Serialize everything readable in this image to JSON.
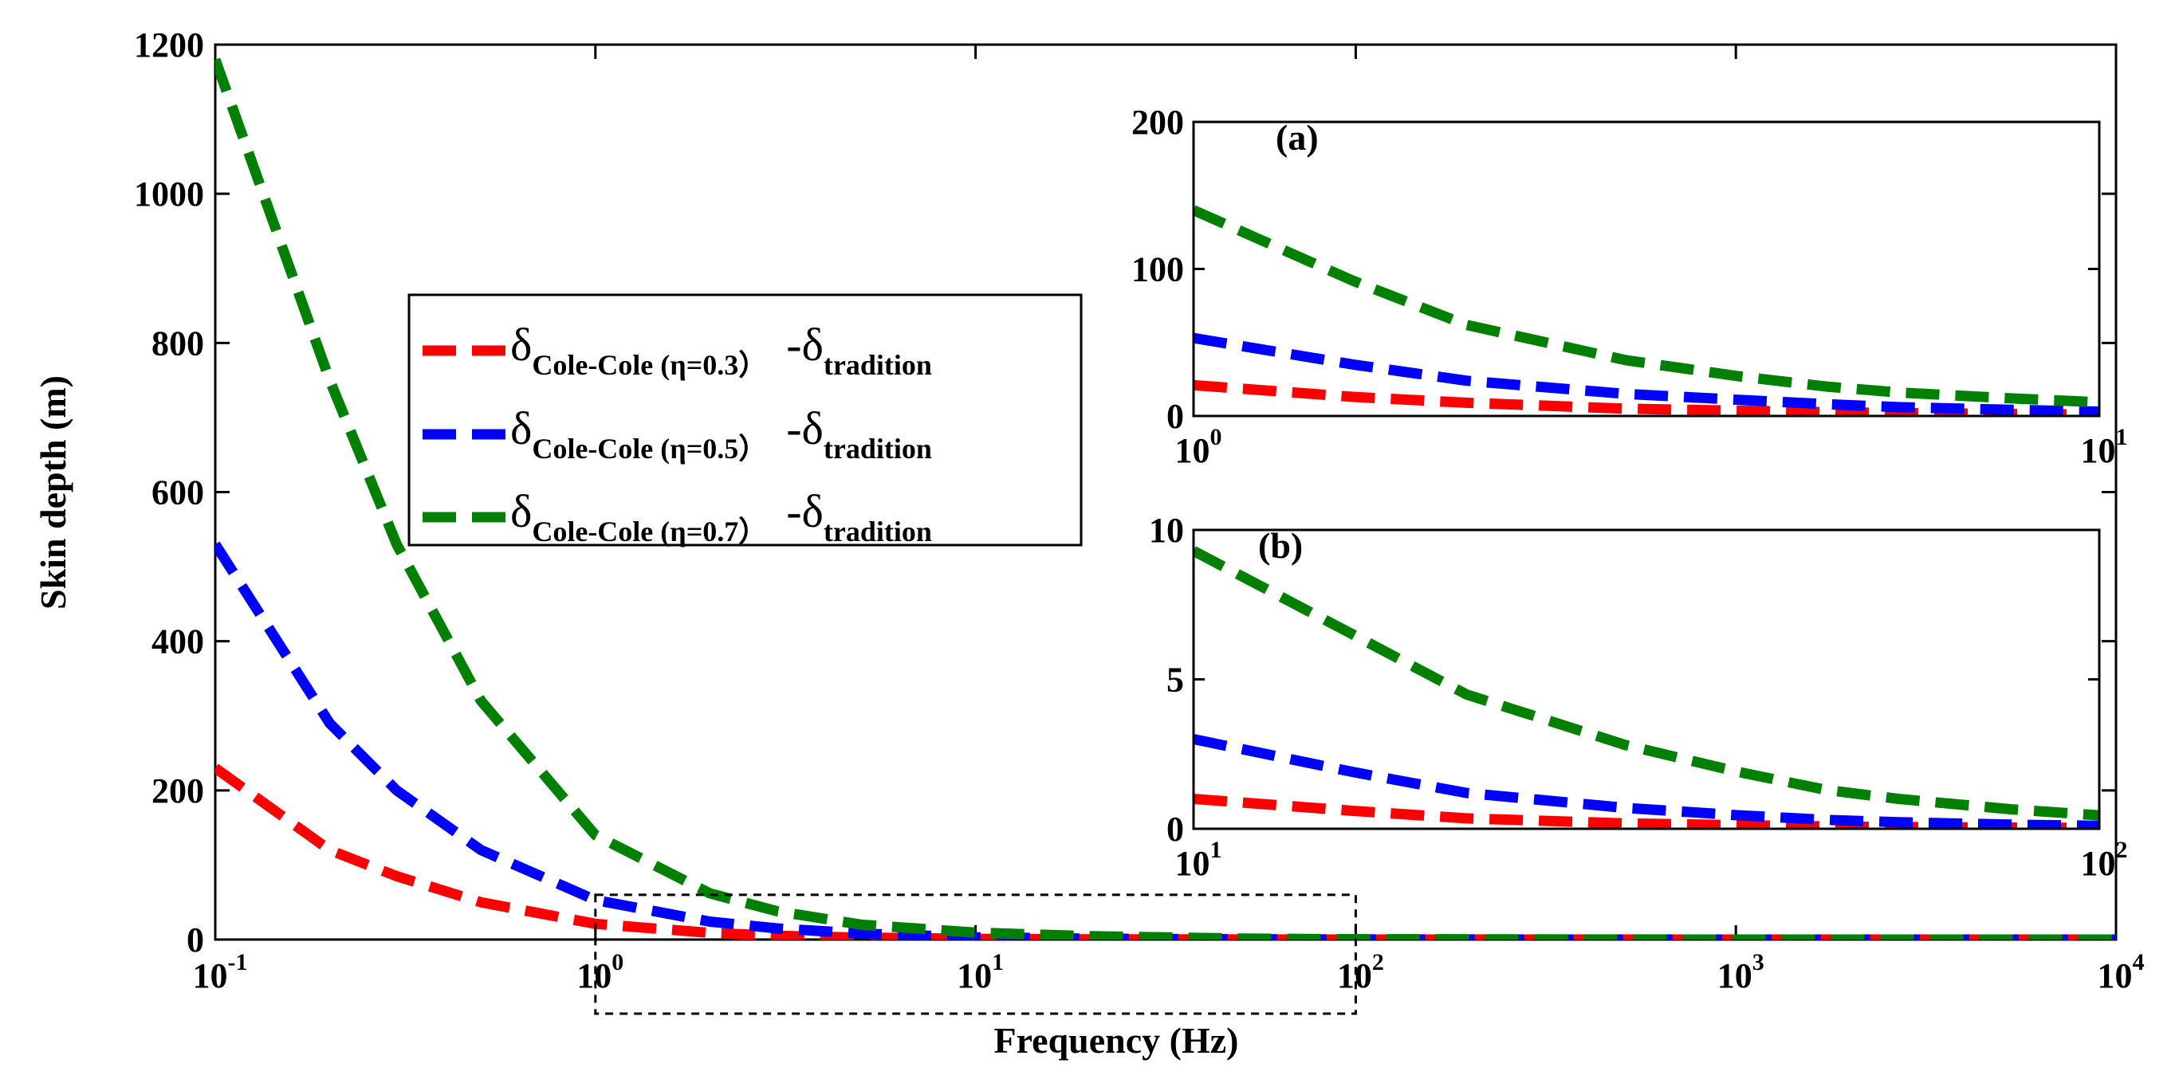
{
  "chart_data": {
    "type": "line",
    "xscale": "log",
    "main": {
      "xlabel": "Frequency (Hz)",
      "ylabel": "Skin depth (m)",
      "xlim": [
        0.1,
        10000
      ],
      "ylim": [
        0,
        1200
      ],
      "ytick_labels": [
        "0",
        "200",
        "400",
        "600",
        "800",
        "1000",
        "1200"
      ],
      "xtick_bases": [
        "10",
        "10",
        "10",
        "10",
        "10",
        "10"
      ],
      "xtick_exps": [
        "-1",
        "0",
        "1",
        "2",
        "3",
        "4"
      ],
      "zoom_box_range": {
        "x": [
          1,
          100
        ],
        "y": [
          0,
          60
        ]
      }
    },
    "legend": {
      "placement": "upper-center",
      "entries": [
        {
          "symbol": "δ",
          "main": "Cole-Cole (η=0.3）",
          "tail": "-δ",
          "tail_sub": "tradition"
        },
        {
          "symbol": "δ",
          "main": "Cole-Cole (η=0.5）",
          "tail": "-δ",
          "tail_sub": "tradition"
        },
        {
          "symbol": "δ",
          "main": "Cole-Cole (η=0.7）",
          "tail": "-δ",
          "tail_sub": "tradition"
        }
      ]
    },
    "series": [
      {
        "name": "δCole-Cole (η=0.3) - δtradition",
        "color": "#ff0000",
        "x": [
          0.1,
          0.2,
          0.3,
          0.5,
          1,
          2,
          3,
          5,
          10,
          20,
          50,
          100,
          1000,
          10000
        ],
        "values": [
          230,
          120,
          85,
          50,
          21,
          9,
          5,
          2.6,
          1.0,
          0.35,
          0.08,
          0.03,
          0,
          0
        ]
      },
      {
        "name": "δCole-Cole (η=0.5) - δtradition",
        "color": "#0000ff",
        "x": [
          0.1,
          0.2,
          0.3,
          0.5,
          1,
          2,
          3,
          5,
          10,
          20,
          50,
          100,
          1000,
          10000
        ],
        "values": [
          530,
          290,
          200,
          120,
          53,
          24,
          15,
          8,
          3.0,
          1.2,
          0.3,
          0.1,
          0,
          0
        ]
      },
      {
        "name": "δCole-Cole (η=0.7) - δtradition",
        "color": "#008000",
        "x": [
          0.1,
          0.2,
          0.3,
          0.5,
          1,
          2,
          3,
          5,
          10,
          20,
          50,
          100,
          1000,
          10000
        ],
        "values": [
          1180,
          750,
          530,
          320,
          140,
          62,
          38,
          20,
          9.3,
          4.5,
          1.3,
          0.45,
          0.05,
          0
        ]
      }
    ],
    "insets": [
      {
        "label": "(a)",
        "xlim": [
          1,
          10
        ],
        "ylim": [
          0,
          200
        ],
        "ytick_labels": [
          "0",
          "100",
          "200"
        ],
        "xtick_bases": [
          "10",
          "10"
        ],
        "xtick_exps": [
          "0",
          "1"
        ],
        "series": [
          {
            "color": "#ff0000",
            "x": [
              1,
              1.5,
              2,
              3,
              4,
              5,
              6,
              8,
              10
            ],
            "values": [
              21,
              13,
              9,
              5,
              3.6,
              2.6,
              2,
              1.4,
              1.0
            ]
          },
          {
            "color": "#0000ff",
            "x": [
              1,
              1.5,
              2,
              3,
              4,
              5,
              6,
              8,
              10
            ],
            "values": [
              53,
              35,
              24,
              15,
              11,
              8,
              6,
              4.2,
              3.0
            ]
          },
          {
            "color": "#008000",
            "x": [
              1,
              1.5,
              2,
              3,
              4,
              5,
              6,
              8,
              10
            ],
            "values": [
              140,
              92,
              62,
              38,
              27,
              20,
              16,
              12,
              9.3
            ]
          }
        ]
      },
      {
        "label": "(b)",
        "xlim": [
          10,
          100
        ],
        "ylim": [
          0,
          10
        ],
        "ytick_labels": [
          "0",
          "5",
          "10"
        ],
        "xtick_bases": [
          "10",
          "10"
        ],
        "xtick_exps": [
          "1",
          "2"
        ],
        "series": [
          {
            "color": "#ff0000",
            "x": [
              10,
              15,
              20,
              30,
              40,
              50,
              60,
              80,
              100
            ],
            "values": [
              1.0,
              0.6,
              0.35,
              0.18,
              0.12,
              0.08,
              0.06,
              0.04,
              0.03
            ]
          },
          {
            "color": "#0000ff",
            "x": [
              10,
              15,
              20,
              30,
              40,
              50,
              60,
              80,
              100
            ],
            "values": [
              3.0,
              1.9,
              1.2,
              0.7,
              0.45,
              0.3,
              0.22,
              0.14,
              0.1
            ]
          },
          {
            "color": "#008000",
            "x": [
              10,
              15,
              20,
              30,
              40,
              50,
              60,
              80,
              100
            ],
            "values": [
              9.3,
              6.5,
              4.5,
              2.8,
              1.9,
              1.3,
              1.0,
              0.65,
              0.45
            ]
          }
        ]
      }
    ]
  }
}
